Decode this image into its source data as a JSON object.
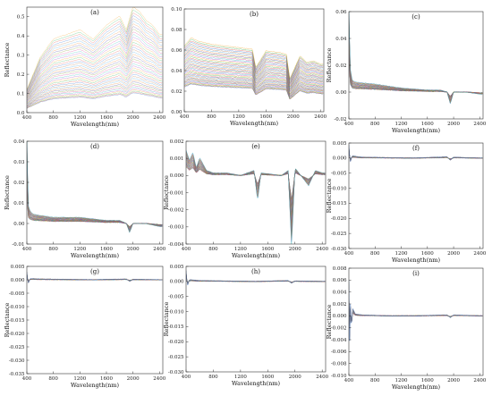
{
  "figure": {
    "panel_count": 9,
    "series_colors": [
      "#2a6fd6",
      "#e0403a",
      "#2bb24c",
      "#f0a020",
      "#9a40c8",
      "#1fb8b8",
      "#d6338f",
      "#7a9a20",
      "#3d3d9a",
      "#e87a20",
      "#3aa0e0",
      "#b07040"
    ]
  },
  "chart_data": [
    {
      "panel": "(a)",
      "type": "line",
      "title": "",
      "xlabel": "Wavelength(nm)",
      "ylabel": "Reflectance",
      "xlim": [
        400,
        2450
      ],
      "ylim": [
        0,
        0.55
      ],
      "xticks": [
        "400",
        "800",
        "1200",
        "1600",
        "2000",
        "2400"
      ],
      "yticks": [
        "0.0",
        "0.1",
        "0.2",
        "0.3",
        "0.4",
        "0.5"
      ],
      "x": [
        400,
        600,
        800,
        1000,
        1200,
        1400,
        1600,
        1800,
        1900,
        2000,
        2100,
        2200,
        2300,
        2400
      ],
      "series_profile": [
        0.05,
        0.12,
        0.16,
        0.17,
        0.18,
        0.16,
        0.19,
        0.21,
        0.18,
        0.23,
        0.22,
        0.2,
        0.19,
        0.17
      ],
      "series_min_scale": 0.45,
      "series_max_scale": 2.4,
      "series_count": 40
    },
    {
      "panel": "(b)",
      "type": "line",
      "title": "",
      "xlabel": "Wavelength(nm)",
      "ylabel": "",
      "xlim": [
        400,
        2450
      ],
      "ylim": [
        0,
        0.1
      ],
      "xticks": [
        "400",
        "800",
        "1200",
        "1600",
        "2000",
        "2400"
      ],
      "yticks": [
        "0.00",
        "0.02",
        "0.04",
        "0.06",
        "0.08",
        "0.10"
      ],
      "x": [
        400,
        500,
        600,
        800,
        1000,
        1200,
        1400,
        1450,
        1600,
        1800,
        1900,
        1950,
        2100,
        2200,
        2300,
        2400
      ],
      "series_profile": [
        0.04,
        0.045,
        0.043,
        0.041,
        0.04,
        0.039,
        0.038,
        0.027,
        0.037,
        0.036,
        0.035,
        0.02,
        0.034,
        0.03,
        0.031,
        0.029
      ],
      "series_min_scale": 0.6,
      "series_max_scale": 1.6,
      "series_count": 40
    },
    {
      "panel": "(c)",
      "type": "line",
      "title": "",
      "xlabel": "Wavelength(nm)",
      "ylabel": "Reflectance",
      "xlim": [
        400,
        2450
      ],
      "ylim": [
        -0.02,
        0.06
      ],
      "xticks": [
        "400",
        "800",
        "1200",
        "1600",
        "2000",
        "2400"
      ],
      "yticks": [
        "-0.02",
        "0.00",
        "0.02",
        "0.04",
        "0.06"
      ],
      "x": [
        400,
        420,
        450,
        500,
        800,
        1200,
        1600,
        1800,
        1900,
        1950,
        2000,
        2200,
        2400
      ],
      "series_profile": [
        0.045,
        0.012,
        0.006,
        0.005,
        0.004,
        0.002,
        0.001,
        0.001,
        0.0,
        -0.006,
        0.0,
        0.0,
        -0.001
      ],
      "series_min_scale": 0.5,
      "series_max_scale": 1.5,
      "series_count": 30
    },
    {
      "panel": "(d)",
      "type": "line",
      "title": "",
      "xlabel": "Wavelength(nm)",
      "ylabel": "Reflectance",
      "xlim": [
        400,
        2450
      ],
      "ylim": [
        -0.01,
        0.04
      ],
      "xticks": [
        "400",
        "800",
        "1200",
        "1600",
        "2000",
        "2400"
      ],
      "yticks": [
        "-0.01",
        "0.00",
        "0.01",
        "0.02",
        "0.03",
        "0.04"
      ],
      "x": [
        400,
        420,
        450,
        500,
        800,
        1200,
        1600,
        1800,
        1900,
        1950,
        2000,
        2200,
        2400
      ],
      "series_profile": [
        0.03,
        0.006,
        0.004,
        0.003,
        0.002,
        0.002,
        0.001,
        0.001,
        0.0,
        -0.003,
        0.0,
        0.0,
        -0.001
      ],
      "series_min_scale": 0.5,
      "series_max_scale": 1.5,
      "series_count": 30
    },
    {
      "panel": "(e)",
      "type": "line",
      "title": "",
      "xlabel": "Wavelength(nm)",
      "ylabel": "Reflectance",
      "xlim": [
        400,
        2450
      ],
      "ylim": [
        -0.004,
        0.002
      ],
      "xticks": [
        "400",
        "800",
        "1200",
        "1600",
        "2000",
        "2400"
      ],
      "yticks": [
        "-0.004",
        "-0.003",
        "-0.002",
        "-0.001",
        "0.000",
        "0.001",
        "0.002"
      ],
      "x": [
        400,
        450,
        500,
        550,
        600,
        700,
        800,
        1000,
        1200,
        1400,
        1450,
        1500,
        1800,
        1900,
        1950,
        2000,
        2200,
        2300,
        2400
      ],
      "series_profile": [
        0.001,
        0.0006,
        0.0009,
        0.0003,
        0.0007,
        0.0002,
        0.0001,
        0.0001,
        0.0,
        0.0002,
        -0.001,
        0.0001,
        0.0,
        0.0002,
        -0.0028,
        0.0003,
        -0.0004,
        0.0002,
        0.0001
      ],
      "series_min_scale": 0.5,
      "series_max_scale": 1.5,
      "series_count": 30
    },
    {
      "panel": "(f)",
      "type": "line",
      "title": "",
      "xlabel": "Wavelength(nm)",
      "ylabel": "Reflectance",
      "xlim": [
        400,
        2450
      ],
      "ylim": [
        -0.03,
        0.005
      ],
      "xticks": [
        "400",
        "800",
        "1200",
        "1600",
        "2000",
        "2400"
      ],
      "yticks": [
        "-0.030",
        "-0.025",
        "-0.020",
        "-0.015",
        "-0.010",
        "-0.005",
        "0.000",
        "0.005"
      ],
      "x": [
        400,
        420,
        450,
        600,
        1000,
        1400,
        1900,
        1950,
        2000,
        2400
      ],
      "series_profile": [
        0.003,
        -0.001,
        0.0005,
        0.0002,
        0.0001,
        0.0,
        0.0003,
        -0.0005,
        0.0002,
        0.0
      ],
      "series_min_scale": 0.5,
      "series_max_scale": 1.5,
      "series_count": 25
    },
    {
      "panel": "(g)",
      "type": "line",
      "title": "",
      "xlabel": "Wavelength(nm)",
      "ylabel": "Reflectance",
      "xlim": [
        400,
        2450
      ],
      "ylim": [
        -0.035,
        0.005
      ],
      "xticks": [
        "400",
        "800",
        "1200",
        "1600",
        "2000",
        "2400"
      ],
      "yticks": [
        "-0.035",
        "-0.030",
        "-0.025",
        "-0.020",
        "-0.015",
        "-0.010",
        "-0.005",
        "0.000",
        "0.005"
      ],
      "x": [
        400,
        420,
        450,
        600,
        1000,
        1400,
        1900,
        1950,
        2000,
        2400
      ],
      "series_profile": [
        0.002,
        -0.001,
        0.0003,
        0.0002,
        0.0001,
        0.0,
        0.0002,
        -0.0004,
        0.0001,
        0.0
      ],
      "series_min_scale": 0.5,
      "series_max_scale": 1.5,
      "series_count": 25
    },
    {
      "panel": "(h)",
      "type": "line",
      "title": "",
      "xlabel": "Wavelength(nm)",
      "ylabel": "Reflectance",
      "xlim": [
        400,
        2450
      ],
      "ylim": [
        -0.03,
        0.005
      ],
      "xticks": [
        "400",
        "800",
        "1200",
        "1600",
        "2000",
        "2400"
      ],
      "yticks": [
        "-0.030",
        "-0.025",
        "-0.020",
        "-0.015",
        "-0.010",
        "-0.005",
        "0.000",
        "0.005"
      ],
      "x": [
        400,
        420,
        450,
        600,
        1000,
        1400,
        1900,
        1950,
        2000,
        2400
      ],
      "series_profile": [
        0.0025,
        -0.001,
        0.0004,
        0.0002,
        0.0001,
        0.0,
        0.0002,
        -0.0004,
        0.0001,
        0.0
      ],
      "series_min_scale": 0.5,
      "series_max_scale": 1.5,
      "series_count": 25
    },
    {
      "panel": "(i)",
      "type": "line",
      "title": "",
      "xlabel": "Wavelength(nm)",
      "ylabel": "Reflectance",
      "xlim": [
        400,
        2450
      ],
      "ylim": [
        -0.01,
        0.008
      ],
      "xticks": [
        "400",
        "800",
        "1200",
        "1600",
        "2000",
        "2400"
      ],
      "yticks": [
        "-0.010",
        "-0.008",
        "-0.006",
        "-0.004",
        "-0.002",
        "0.000",
        "0.002",
        "0.004",
        "0.006",
        "0.008"
      ],
      "x": [
        400,
        410,
        420,
        440,
        460,
        500,
        600,
        1000,
        1400,
        1900,
        1950,
        2000,
        2400
      ],
      "series_profile": [
        0.004,
        -0.004,
        0.002,
        -0.0015,
        0.0008,
        0.0002,
        0.0001,
        0.0,
        0.0,
        0.0001,
        -0.0002,
        0.0001,
        0.0
      ],
      "series_min_scale": 0.5,
      "series_max_scale": 1.5,
      "series_count": 25
    }
  ]
}
